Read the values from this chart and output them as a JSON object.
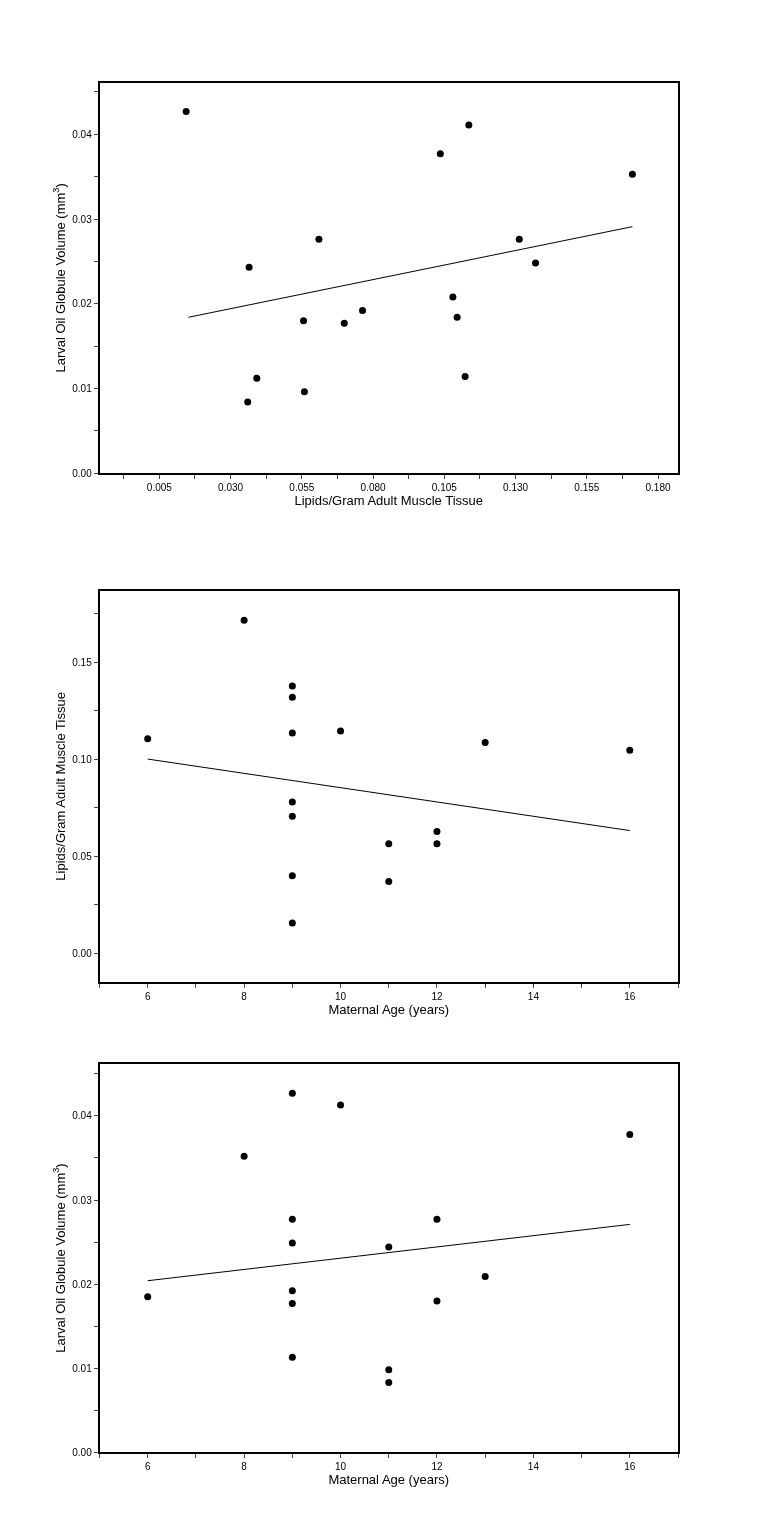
{
  "chart_data": [
    {
      "type": "scatter",
      "xlabel": "Lipids/Gram Adult Muscle Tissue",
      "ylabel": "Larval Oil Globule Volume (mm$^{3}$)",
      "marker": "circle",
      "xlim": [
        -0.016,
        0.187
      ],
      "ylim": [
        0,
        0.0461
      ],
      "xticks": [
        {
          "value": -0.0075,
          "label": null
        },
        {
          "value": 0.005,
          "label": "0.005"
        },
        {
          "value": 0.0175,
          "label": null
        },
        {
          "value": 0.03,
          "label": "0.030"
        },
        {
          "value": 0.0425,
          "label": null
        },
        {
          "value": 0.055,
          "label": "0.055"
        },
        {
          "value": 0.0675,
          "label": null
        },
        {
          "value": 0.08,
          "label": "0.080"
        },
        {
          "value": 0.0925,
          "label": null
        },
        {
          "value": 0.105,
          "label": "0.105"
        },
        {
          "value": 0.1175,
          "label": null
        },
        {
          "value": 0.13,
          "label": "0.130"
        },
        {
          "value": 0.1425,
          "label": null
        },
        {
          "value": 0.155,
          "label": "0.155"
        },
        {
          "value": 0.1675,
          "label": null
        },
        {
          "value": 0.18,
          "label": "0.180"
        }
      ],
      "yticks": [
        {
          "value": 0,
          "label": "0.00"
        },
        {
          "value": 0.005,
          "label": null
        },
        {
          "value": 0.01,
          "label": "0.01"
        },
        {
          "value": 0.015,
          "label": null
        },
        {
          "value": 0.02,
          "label": "0.02"
        },
        {
          "value": 0.025,
          "label": null
        },
        {
          "value": 0.03,
          "label": "0.03"
        },
        {
          "value": 0.035,
          "label": null
        },
        {
          "value": 0.04,
          "label": "0.04"
        },
        {
          "value": 0.045,
          "label": null
        }
      ],
      "series": [
        {
          "color": "#000000",
          "x": [
            0.0144,
            0.1136,
            0.1036,
            0.171,
            0.061,
            0.1313,
            0.0365,
            0.137,
            0.108,
            0.1095,
            0.0556,
            0.0699,
            0.0763,
            0.0392,
            0.036,
            0.0559,
            0.1123
          ],
          "values": [
            0.0427,
            0.0411,
            0.0377,
            0.0353,
            0.0276,
            0.0276,
            0.0243,
            0.0248,
            0.0208,
            0.0184,
            0.018,
            0.0177,
            0.0192,
            0.0112,
            0.0084,
            0.0096,
            0.0114
          ]
        },
        {
          "type": "line",
          "marker": "none",
          "color": "#000000",
          "x": [
            0.0152,
            0.171
          ],
          "values": [
            0.0184,
            0.0291
          ]
        }
      ]
    },
    {
      "type": "scatter",
      "xlabel": "Maternal Age (years)",
      "ylabel": "Lipids/Gram Adult Muscle Tissue",
      "marker": "circle",
      "xlim": [
        5,
        17
      ],
      "ylim": [
        -0.015,
        0.187
      ],
      "xticks": [
        {
          "value": 5,
          "label": null
        },
        6,
        {
          "value": 7,
          "label": null
        },
        8,
        {
          "value": 9,
          "label": null
        },
        10,
        {
          "value": 11,
          "label": null
        },
        12,
        {
          "value": 13,
          "label": null
        },
        14,
        {
          "value": 15,
          "label": null
        },
        16,
        {
          "value": 17,
          "label": null
        }
      ],
      "yticks": [
        {
          "value": 0,
          "label": "0.00"
        },
        {
          "value": 0.025,
          "label": null
        },
        {
          "value": 0.05,
          "label": "0.05"
        },
        {
          "value": 0.075,
          "label": null
        },
        {
          "value": 0.1,
          "label": "0.10"
        },
        {
          "value": 0.125,
          "label": null
        },
        {
          "value": 0.15,
          "label": "0.15"
        },
        {
          "value": 0.175,
          "label": null
        }
      ],
      "series": [
        {
          "color": "#000000",
          "x": [
            6,
            8,
            9,
            9,
            9,
            10,
            13,
            16,
            9,
            9,
            12,
            12,
            11,
            9,
            11,
            9
          ],
          "values": [
            0.1106,
            0.1717,
            0.1378,
            0.132,
            0.1136,
            0.1146,
            0.1086,
            0.1046,
            0.0779,
            0.0706,
            0.0627,
            0.0564,
            0.0564,
            0.0399,
            0.0369,
            0.0155
          ]
        },
        {
          "type": "line",
          "marker": "none",
          "color": "#000000",
          "x": [
            6,
            16
          ],
          "values": [
            0.1001,
            0.0632
          ]
        }
      ]
    },
    {
      "type": "scatter",
      "xlabel": "Maternal Age (years)",
      "ylabel": "Larval Oil Globule Volume (mm$^{3}$)",
      "marker": "circle",
      "xlim": [
        5,
        17
      ],
      "ylim": [
        0,
        0.0462
      ],
      "xticks": [
        {
          "value": 5,
          "label": null
        },
        6,
        {
          "value": 7,
          "label": null
        },
        8,
        {
          "value": 9,
          "label": null
        },
        10,
        {
          "value": 11,
          "label": null
        },
        12,
        {
          "value": 13,
          "label": null
        },
        14,
        {
          "value": 15,
          "label": null
        },
        16,
        {
          "value": 17,
          "label": null
        }
      ],
      "yticks": [
        {
          "value": 0,
          "label": "0.00"
        },
        {
          "value": 0.005,
          "label": null
        },
        {
          "value": 0.01,
          "label": "0.01"
        },
        {
          "value": 0.015,
          "label": null
        },
        {
          "value": 0.02,
          "label": "0.02"
        },
        {
          "value": 0.025,
          "label": null
        },
        {
          "value": 0.03,
          "label": "0.03"
        },
        {
          "value": 0.035,
          "label": null
        },
        {
          "value": 0.04,
          "label": "0.04"
        },
        {
          "value": 0.045,
          "label": null
        }
      ],
      "series": [
        {
          "color": "#000000",
          "x": [
            9,
            10,
            8,
            16,
            9,
            12,
            9,
            11,
            13,
            6,
            9,
            9,
            12,
            9,
            11,
            11
          ],
          "values": [
            0.0427,
            0.0413,
            0.0352,
            0.0378,
            0.0277,
            0.0277,
            0.0249,
            0.0244,
            0.0209,
            0.0185,
            0.0192,
            0.0177,
            0.018,
            0.0113,
            0.0098,
            0.0083
          ]
        },
        {
          "type": "line",
          "marker": "none",
          "color": "#000000",
          "x": [
            6,
            16
          ],
          "values": [
            0.0204,
            0.0271
          ]
        }
      ]
    }
  ]
}
